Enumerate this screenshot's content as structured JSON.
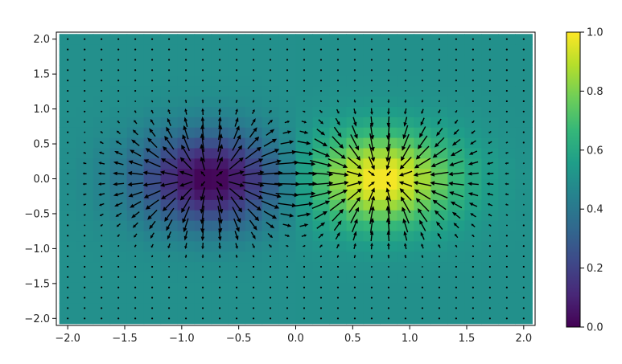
{
  "chart_data": {
    "type": "heatmap",
    "title": "",
    "xlabel": "",
    "ylabel": "",
    "xlim": [
      -2.1,
      2.1
    ],
    "ylim": [
      -2.1,
      2.1
    ],
    "x_ticks": [
      "−2.0",
      "−1.5",
      "−1.0",
      "−0.5",
      "0.0",
      "0.5",
      "1.0",
      "1.5",
      "2.0"
    ],
    "x_tick_values": [
      -2.0,
      -1.5,
      -1.0,
      -0.5,
      0.0,
      0.5,
      1.0,
      1.5,
      2.0
    ],
    "y_ticks": [
      "2.0",
      "1.5",
      "1.0",
      "0.5",
      "0.0",
      "−0.5",
      "−1.0",
      "−1.5",
      "−2.0"
    ],
    "y_tick_values": [
      2.0,
      1.5,
      1.0,
      0.5,
      0.0,
      -0.5,
      -1.0,
      -1.5,
      -2.0
    ],
    "grid": {
      "n": 28,
      "min": -2.0,
      "max": 2.0
    },
    "field": {
      "description": "",
      "baseline": 0.5,
      "peaks": [
        {
          "x": 0.75,
          "y": 0.0,
          "amplitude": 0.5,
          "width": 0.45
        },
        {
          "x": -0.75,
          "y": 0.0,
          "amplitude": -0.5,
          "width": 0.45
        }
      ]
    },
    "quiver": {
      "type": "gradient",
      "color": "#000000"
    },
    "colorbar": {
      "min": 0.0,
      "max": 1.0,
      "ticks": [
        "0.0",
        "0.2",
        "0.4",
        "0.6",
        "0.8",
        "1.0"
      ],
      "tick_values": [
        0.0,
        0.2,
        0.4,
        0.6,
        0.8,
        1.0
      ],
      "colormap": "viridis",
      "colormap_stops": [
        "#440154",
        "#482878",
        "#3e4989",
        "#31688e",
        "#26828e",
        "#1f9e89",
        "#35b779",
        "#6ece58",
        "#b5de2b",
        "#fde725"
      ]
    }
  }
}
